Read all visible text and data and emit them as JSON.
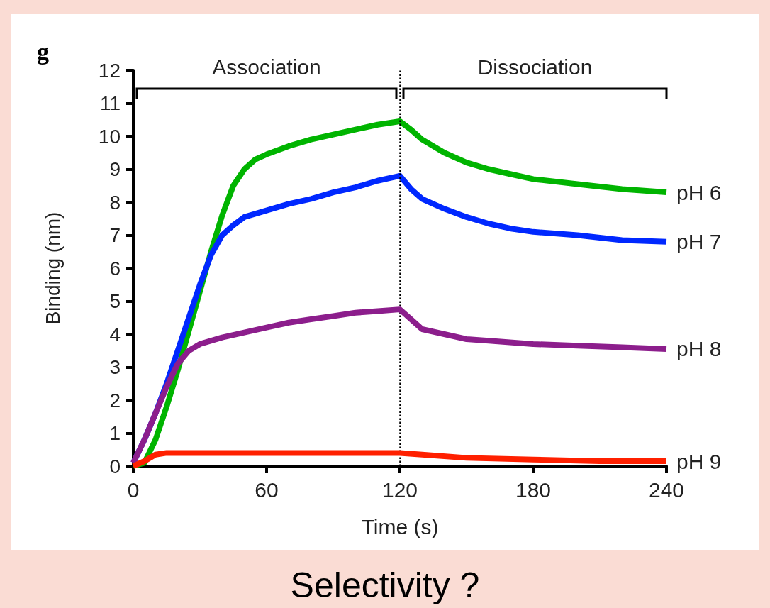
{
  "chart_data": {
    "type": "line",
    "xlabel": "Time (s)",
    "ylabel": "Binding (nm)",
    "annotations": [
      "g",
      "Association",
      "Dissociation",
      "Selectivity ?"
    ],
    "xlim": [
      0,
      240
    ],
    "xticks": [
      0,
      60,
      120,
      180,
      240
    ],
    "ylim": [
      0,
      12
    ],
    "yticks": [
      0,
      1,
      2,
      3,
      4,
      5,
      6,
      7,
      8,
      9,
      10,
      11,
      12
    ],
    "grid": false,
    "legend": false,
    "marker": "none",
    "line_style": "solid",
    "ref_lines": [
      {
        "axis": "x",
        "value": 120,
        "line_style": "dotted",
        "color": "#000000"
      }
    ],
    "series": [
      {
        "name": "pH 6",
        "color": "#00b400",
        "x": [
          0,
          5,
          10,
          15,
          20,
          25,
          30,
          35,
          40,
          45,
          50,
          55,
          60,
          70,
          80,
          90,
          100,
          110,
          120,
          125,
          130,
          140,
          150,
          160,
          170,
          180,
          200,
          220,
          240
        ],
        "values": [
          0,
          0.1,
          0.8,
          1.8,
          2.9,
          4.1,
          5.3,
          6.5,
          7.6,
          8.5,
          9,
          9.3,
          9.45,
          9.7,
          9.9,
          10.05,
          10.2,
          10.35,
          10.45,
          10.2,
          9.9,
          9.5,
          9.2,
          9,
          8.85,
          8.7,
          8.55,
          8.4,
          8.3
        ]
      },
      {
        "name": "pH 7",
        "color": "#0028ff",
        "x": [
          0,
          5,
          10,
          15,
          20,
          25,
          30,
          35,
          40,
          45,
          50,
          60,
          70,
          80,
          90,
          100,
          110,
          120,
          125,
          130,
          140,
          150,
          160,
          170,
          180,
          200,
          220,
          240
        ],
        "values": [
          0.1,
          0.8,
          1.6,
          2.5,
          3.5,
          4.5,
          5.5,
          6.4,
          7,
          7.3,
          7.55,
          7.75,
          7.95,
          8.1,
          8.3,
          8.45,
          8.65,
          8.8,
          8.4,
          8.1,
          7.8,
          7.55,
          7.35,
          7.2,
          7.1,
          7,
          6.85,
          6.8
        ]
      },
      {
        "name": "pH 8",
        "color": "#8c1e8c",
        "x": [
          0,
          5,
          10,
          15,
          20,
          25,
          30,
          40,
          50,
          60,
          70,
          80,
          90,
          100,
          110,
          120,
          125,
          130,
          140,
          150,
          160,
          180,
          200,
          220,
          240
        ],
        "values": [
          0.1,
          0.8,
          1.6,
          2.4,
          3.1,
          3.5,
          3.7,
          3.9,
          4.05,
          4.2,
          4.35,
          4.45,
          4.55,
          4.65,
          4.7,
          4.75,
          4.45,
          4.15,
          4,
          3.85,
          3.8,
          3.7,
          3.65,
          3.6,
          3.55
        ]
      },
      {
        "name": "pH 9",
        "color": "#ff2000",
        "x": [
          0,
          5,
          10,
          15,
          60,
          120,
          130,
          150,
          180,
          210,
          240
        ],
        "values": [
          0,
          0.15,
          0.35,
          0.4,
          0.4,
          0.4,
          0.35,
          0.25,
          0.2,
          0.15,
          0.15
        ]
      }
    ]
  }
}
